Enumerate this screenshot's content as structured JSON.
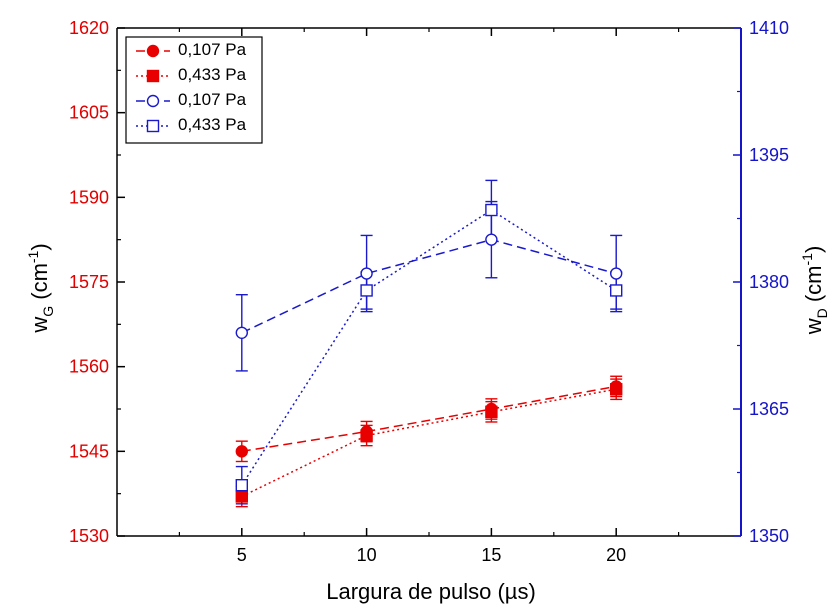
{
  "chart_data": {
    "type": "line",
    "xlabel": "Largura de pulso (µs)",
    "ylabel_left_main": "w",
    "ylabel_left_sub": "G",
    "ylabel_left_unit_pre": " (cm",
    "ylabel_left_unit_sup": "-1",
    "ylabel_left_unit_post": ")",
    "ylabel_right_main": "w",
    "ylabel_right_sub": "D",
    "ylabel_right_unit_pre": " (cm",
    "ylabel_right_unit_sup": "-1",
    "ylabel_right_unit_post": ")",
    "x": [
      5,
      10,
      15,
      20
    ],
    "xlim": [
      0,
      25
    ],
    "xticks": [
      "5",
      "10",
      "15",
      "20"
    ],
    "ylim_left": [
      1530,
      1620
    ],
    "yticks_left": [
      "1530",
      "1545",
      "1560",
      "1575",
      "1590",
      "1605",
      "1620"
    ],
    "ylim_right": [
      1350,
      1410
    ],
    "yticks_right": [
      "1350",
      "1365",
      "1380",
      "1395",
      "1410"
    ],
    "colors": {
      "left_axis": "#e00000",
      "right_axis": "#1414c8",
      "red": "#e80000",
      "blue": "#1a1acc"
    },
    "series": [
      {
        "name": "0,107 Pa",
        "axis": "left",
        "marker": "circle-filled",
        "dash": "dashed",
        "color": "#e80000",
        "values": [
          1545.0,
          1548.5,
          1552.5,
          1556.5
        ],
        "errors": [
          1.8,
          1.8,
          1.8,
          1.8
        ]
      },
      {
        "name": "0,433 Pa",
        "axis": "left",
        "marker": "square-filled",
        "dash": "dotted",
        "color": "#e80000",
        "values": [
          1537.0,
          1547.8,
          1552.0,
          1556.0
        ],
        "errors": [
          1.8,
          1.8,
          1.8,
          1.8
        ]
      },
      {
        "name": "0,107 Pa",
        "axis": "right",
        "marker": "circle-open",
        "dash": "dashed",
        "color": "#1a1acc",
        "values": [
          1374.0,
          1381.0,
          1385.0,
          1381.0
        ],
        "errors": [
          4.5,
          4.5,
          4.5,
          4.5
        ]
      },
      {
        "name": "0,433 Pa",
        "axis": "right",
        "marker": "square-open",
        "dash": "dotted",
        "color": "#1a1acc",
        "values": [
          1356.0,
          1379.0,
          1388.5,
          1379.0
        ],
        "errors": [
          2.2,
          2.2,
          3.5,
          2.2
        ]
      }
    ],
    "legend": {
      "placement": "top-left"
    }
  }
}
